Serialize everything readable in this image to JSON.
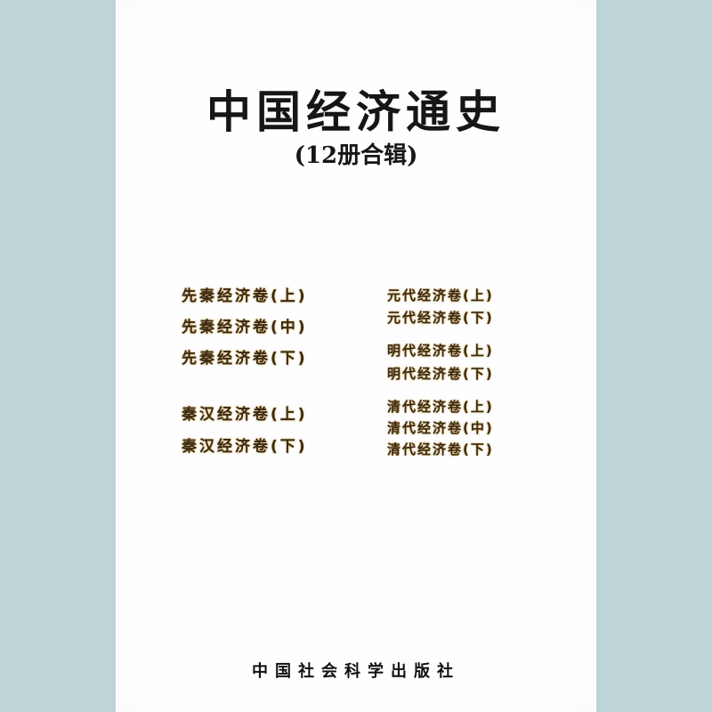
{
  "cover": {
    "title": "中国经济通史",
    "subtitle": "(12册合辑)",
    "left_volumes": [
      "先秦经济卷(上)",
      "先秦经济卷(中)",
      "先秦经济卷(下)",
      "秦汉经济卷(上)",
      "秦汉经济卷(下)"
    ],
    "right_volumes": [
      "元代经济卷(上)",
      "元代经济卷(下)",
      "明代经济卷(上)",
      "明代经济卷(下)",
      "清代经济卷(上)",
      "清代经济卷(中)",
      "清代经济卷(下)"
    ],
    "publisher": "中国社会科学出版社"
  },
  "colors": {
    "background": "#bfd4d6",
    "cover": "#fefefe",
    "title_text": "#161616",
    "volume_text": "#3a2a14",
    "volume_glow": "#d9b56b"
  }
}
